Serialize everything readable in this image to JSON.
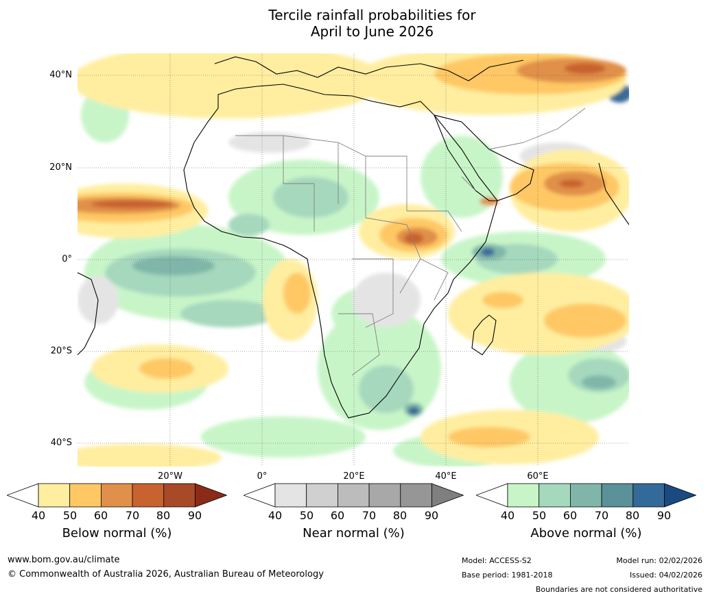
{
  "title": {
    "line1": "Tercile rainfall probabilities for",
    "line2": "April to June 2026"
  },
  "map": {
    "lat_labels": [
      "40°N",
      "20°N",
      "0°",
      "20°S",
      "40°S"
    ],
    "lon_labels": [
      "20°W",
      "0°",
      "20°E",
      "40°E",
      "60°E"
    ],
    "colors": {
      "ocean_base": "#ffffff",
      "below": [
        "#ffeea0",
        "#ffc865",
        "#e0904a",
        "#c8622f",
        "#a84a28",
        "#8c2a1a"
      ],
      "near": [
        "#e8e8e8",
        "#d4d4d4",
        "#c0c0c0",
        "#ababab",
        "#959595",
        "#7f7f7f"
      ],
      "above": [
        "#c8f5c8",
        "#a6d8bd",
        "#80b6a9",
        "#5b9199",
        "#3a6a98",
        "#1f4f85"
      ],
      "coast": "#000000",
      "border": "#808080"
    }
  },
  "colorbars": {
    "below": {
      "label": "Below normal (%)",
      "ticks": [
        "40",
        "50",
        "60",
        "70",
        "80",
        "90"
      ],
      "colors": [
        "#ffffff",
        "#ffeea0",
        "#ffc865",
        "#e0904a",
        "#c8622f",
        "#a84a28",
        "#8c2a1a"
      ]
    },
    "near": {
      "label": "Near normal (%)",
      "ticks": [
        "40",
        "50",
        "60",
        "70",
        "80",
        "90"
      ],
      "colors": [
        "#ffffff",
        "#e4e4e4",
        "#d0d0d0",
        "#bcbcbc",
        "#a8a8a8",
        "#969696",
        "#7f7f7f"
      ]
    },
    "above": {
      "label": "Above normal (%)",
      "ticks": [
        "40",
        "50",
        "60",
        "70",
        "80",
        "90"
      ],
      "colors": [
        "#ffffff",
        "#c8f5c8",
        "#a6d8bd",
        "#80b6a9",
        "#5b9199",
        "#336a99",
        "#1a4a80"
      ]
    }
  },
  "footer": {
    "website": "www.bom.gov.au/climate",
    "copyright": "© Commonwealth of Australia 2026, Australian Bureau of Meteorology",
    "model": "Model: ACCESS-S2",
    "base_period": "Base period: 1981-2018",
    "model_run": "Model run: 02/02/2026",
    "issued": "Issued: 04/02/2026",
    "disclaimer": "Boundaries are not considered authoritative"
  }
}
